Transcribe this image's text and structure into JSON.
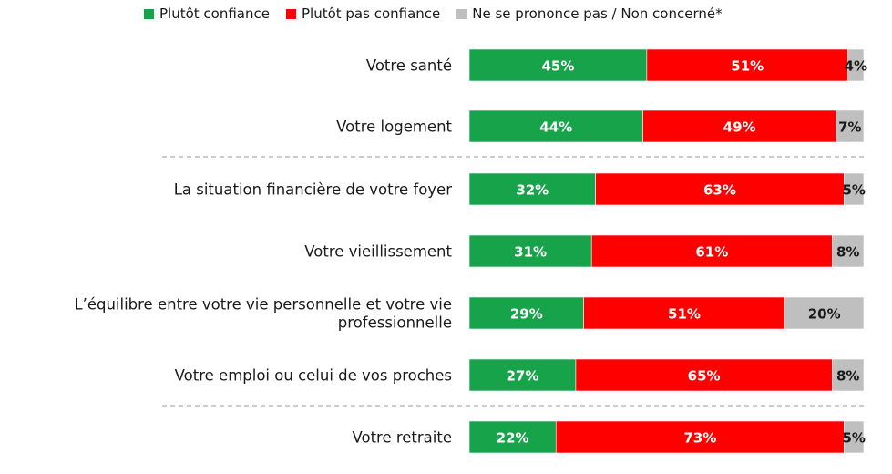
{
  "chart_data": {
    "type": "bar",
    "orientation": "horizontal",
    "stacked": true,
    "percent_stacked": true,
    "legend_position": "top",
    "categories": [
      [
        "Votre santé"
      ],
      [
        "Votre logement"
      ],
      [
        "La situation financière de votre foyer"
      ],
      [
        "Votre vieillissement"
      ],
      [
        "L’équilibre entre votre vie personnelle et votre vie",
        "professionnelle"
      ],
      [
        "Votre emploi ou celui de vos proches"
      ],
      [
        "Votre retraite"
      ]
    ],
    "series": [
      {
        "name": "Plutôt confiance",
        "color": "#17a34a",
        "label_color": "#ffffff",
        "values": [
          45,
          44,
          32,
          31,
          29,
          27,
          22
        ]
      },
      {
        "name": "Plutôt pas confiance",
        "color": "#ff0000",
        "label_color": "#ffffff",
        "values": [
          51,
          49,
          63,
          61,
          51,
          65,
          73
        ]
      },
      {
        "name": "Ne se prononce pas / Non concerné*",
        "color": "#bfbfbf",
        "label_color": "#1a1a1a",
        "values": [
          4,
          7,
          5,
          8,
          20,
          8,
          5
        ]
      }
    ],
    "value_suffix": "%",
    "separators_after": [
      1,
      5
    ]
  }
}
